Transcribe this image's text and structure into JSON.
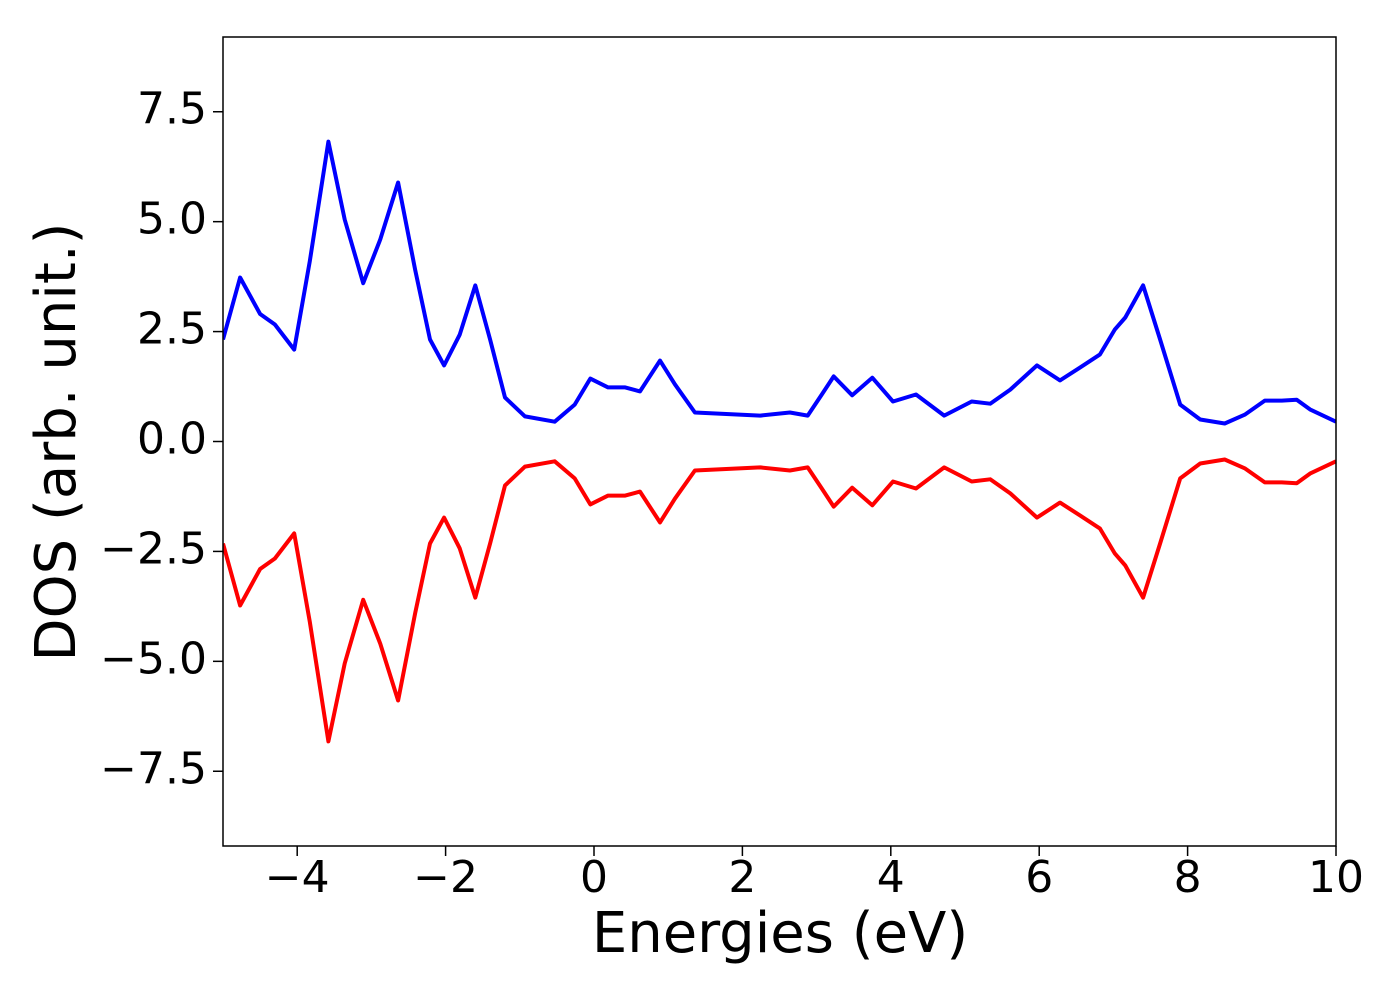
{
  "chart_data": {
    "type": "line",
    "xlabel": "Energies (eV)",
    "ylabel": "DOS (arb. unit.)",
    "x": [
      -5,
      -4.77,
      -4.5,
      -4.3,
      -4.04,
      -3.83,
      -3.58,
      -3.36,
      -3.11,
      -2.88,
      -2.64,
      -2.41,
      -2.21,
      -2.02,
      -1.81,
      -1.6,
      -1.4,
      -1.2,
      -0.93,
      -0.53,
      -0.26,
      -0.05,
      0.19,
      0.42,
      0.62,
      0.89,
      1.09,
      1.36,
      2.24,
      2.64,
      2.88,
      3.07,
      3.23,
      3.48,
      3.75,
      4.03,
      4.34,
      4.72,
      5.09,
      5.34,
      5.61,
      5.97,
      6.28,
      6.55,
      6.82,
      7.02,
      7.16,
      7.4,
      7.63,
      7.9,
      8.17,
      8.5,
      8.77,
      9.04,
      9.27,
      9.47,
      9.65,
      10
    ],
    "series": [
      {
        "color": "#0000ff",
        "values": [
          2.32,
          3.73,
          2.9,
          2.66,
          2.09,
          4.1,
          6.82,
          5.05,
          3.6,
          4.6,
          5.89,
          3.9,
          2.32,
          1.73,
          2.43,
          3.55,
          2.32,
          1.0,
          0.57,
          0.45,
          0.84,
          1.43,
          1.23,
          1.23,
          1.14,
          1.84,
          1.3,
          0.66,
          0.59,
          0.66,
          0.59,
          1.07,
          1.48,
          1.05,
          1.45,
          0.91,
          1.07,
          0.59,
          0.91,
          0.86,
          1.18,
          1.73,
          1.39,
          1.68,
          1.98,
          2.55,
          2.82,
          3.55,
          2.32,
          0.84,
          0.5,
          0.41,
          0.61,
          0.93,
          0.93,
          0.95,
          0.73,
          0.45
        ]
      },
      {
        "color": "#ff0000",
        "values": [
          -2.32,
          -3.73,
          -2.9,
          -2.66,
          -2.09,
          -4.1,
          -6.82,
          -5.05,
          -3.6,
          -4.6,
          -5.89,
          -3.9,
          -2.32,
          -1.73,
          -2.43,
          -3.55,
          -2.32,
          -1.0,
          -0.57,
          -0.45,
          -0.84,
          -1.43,
          -1.23,
          -1.23,
          -1.14,
          -1.84,
          -1.3,
          -0.66,
          -0.59,
          -0.66,
          -0.59,
          -1.07,
          -1.48,
          -1.05,
          -1.45,
          -0.91,
          -1.07,
          -0.59,
          -0.91,
          -0.86,
          -1.18,
          -1.73,
          -1.39,
          -1.68,
          -1.98,
          -2.55,
          -2.82,
          -3.55,
          -2.32,
          -0.84,
          -0.5,
          -0.41,
          -0.61,
          -0.93,
          -0.93,
          -0.95,
          -0.73,
          -0.45
        ]
      }
    ],
    "xlim": [
      -5,
      10
    ],
    "ylim": [
      -9.2,
      9.2
    ],
    "xticks": [
      {
        "value": -4,
        "label": "−4"
      },
      {
        "value": -2,
        "label": "−2"
      },
      0,
      2,
      4,
      6,
      8,
      10
    ],
    "yticks": [
      {
        "value": -7.5,
        "label": "−7.5"
      },
      {
        "value": -5,
        "label": "−5.0"
      },
      {
        "value": -2.5,
        "label": "−2.5"
      },
      {
        "value": 0,
        "label": "0.0"
      },
      2.5,
      {
        "value": 5,
        "label": "5.0"
      },
      7.5
    ],
    "grid": false
  }
}
